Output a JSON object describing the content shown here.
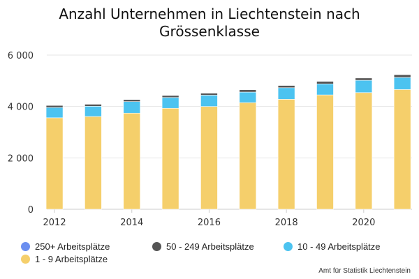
{
  "title_line1": "Anzahl Unternehmen in Liechtenstein nach",
  "title_line2": "Grössenklasse",
  "source": "Amt für Statistik Liechtenstein",
  "chart_data": {
    "type": "bar",
    "stacked": true,
    "title": "Anzahl Unternehmen in Liechtenstein nach Grössenklasse",
    "x": [
      2012,
      2013,
      2014,
      2015,
      2016,
      2017,
      2018,
      2019,
      2020,
      2021
    ],
    "xticks": [
      "2012",
      "2014",
      "2016",
      "2018",
      "2020"
    ],
    "yticks": [
      "0",
      "2 000",
      "4 000",
      "6 000"
    ],
    "ylim": [
      0,
      6000
    ],
    "grid": true,
    "legend_position": "bottom",
    "series": [
      {
        "name": "1 - 9 Arbeitsplätze",
        "color": "#f5cf6b",
        "values": [
          3560,
          3610,
          3740,
          3930,
          4000,
          4150,
          4280,
          4450,
          4540,
          4660
        ]
      },
      {
        "name": "10 - 49 Arbeitsplätze",
        "color": "#4cc3f0",
        "values": [
          400,
          400,
          450,
          420,
          440,
          410,
          450,
          430,
          480,
          470
        ]
      },
      {
        "name": "50 - 249 Arbeitsplätze",
        "color": "#555555",
        "values": [
          80,
          80,
          80,
          80,
          80,
          90,
          90,
          100,
          90,
          110
        ]
      },
      {
        "name": "250+ Arbeitsplätze",
        "color": "#6b8ff0",
        "values": [
          10,
          10,
          10,
          10,
          10,
          10,
          10,
          10,
          10,
          10
        ]
      }
    ]
  },
  "legend": [
    {
      "label": "250+ Arbeitsplätze",
      "color": "#6b8ff0"
    },
    {
      "label": "50 - 249 Arbeitsplätze",
      "color": "#555555"
    },
    {
      "label": "10 - 49 Arbeitsplätze",
      "color": "#4cc3f0"
    },
    {
      "label": "1 - 9 Arbeitsplätze",
      "color": "#f5cf6b"
    }
  ]
}
